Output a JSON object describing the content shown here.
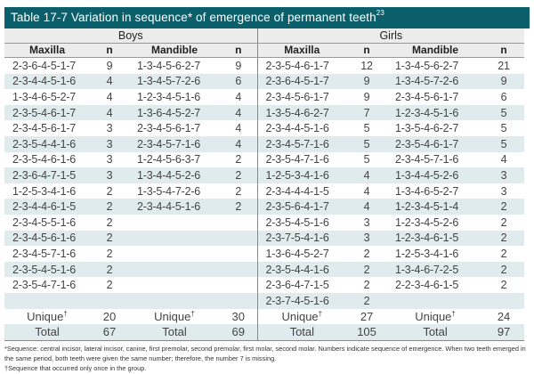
{
  "table": {
    "title": "Table 17-7  Variation in sequence* of emergence of permanent teeth",
    "title_superscript": "23",
    "groups": [
      "Boys",
      "Girls"
    ],
    "columns": [
      "Maxilla",
      "n",
      "Mandible",
      "n",
      "Maxilla",
      "n",
      "Mandible",
      "n"
    ],
    "rows": [
      [
        "2-3-6-4-5-1-7",
        "9",
        "1-3-4-5-6-2-7",
        "9",
        "2-3-5-4-6-1-7",
        "12",
        "1-3-4-5-6-2-7",
        "21"
      ],
      [
        "2-3-4-4-5-1-6",
        "4",
        "1-3-4-5-7-2-6",
        "6",
        "2-3-6-4-5-1-7",
        "9",
        "1-3-4-5-7-2-6",
        "9"
      ],
      [
        "1-3-4-6-5-2-7",
        "4",
        "1-2-3-4-5-1-6",
        "4",
        "2-3-4-5-6-1-7",
        "9",
        "2-3-4-5-6-1-7",
        "6"
      ],
      [
        "2-3-5-4-6-1-7",
        "4",
        "1-3-6-4-5-2-7",
        "4",
        "1-3-5-4-6-2-7",
        "7",
        "1-2-3-4-5-1-6",
        "5"
      ],
      [
        "2-3-4-5-6-1-7",
        "3",
        "2-3-4-5-6-1-7",
        "4",
        "2-3-4-4-5-1-6",
        "5",
        "1-3-5-4-6-2-7",
        "5"
      ],
      [
        "2-3-5-4-4-1-6",
        "3",
        "2-3-4-5-7-1-6",
        "4",
        "2-3-4-5-7-1-6",
        "5",
        "2-3-5-4-6-1-7",
        "5"
      ],
      [
        "2-3-5-4-6-1-6",
        "3",
        "1-2-4-5-6-3-7",
        "2",
        "2-3-5-4-7-1-6",
        "5",
        "2-3-4-5-7-1-6",
        "4"
      ],
      [
        "2-3-6-4-7-1-5",
        "3",
        "1-3-4-4-5-2-6",
        "2",
        "1-2-5-3-4-1-6",
        "4",
        "1-3-4-4-5-2-6",
        "3"
      ],
      [
        "1-2-5-3-4-1-6",
        "2",
        "1-3-5-4-7-2-6",
        "2",
        "2-3-4-4-4-1-5",
        "4",
        "1-3-4-6-5-2-7",
        "3"
      ],
      [
        "2-3-4-4-6-1-5",
        "2",
        "2-3-4-4-5-1-6",
        "2",
        "2-3-5-6-4-1-7",
        "4",
        "1-2-3-4-5-1-4",
        "2"
      ],
      [
        "2-3-4-5-5-1-6",
        "2",
        "",
        "",
        "2-3-5-4-5-1-6",
        "3",
        "1-2-3-4-5-2-6",
        "2"
      ],
      [
        "2-3-4-5-6-1-6",
        "2",
        "",
        "",
        "2-3-7-5-4-1-6",
        "3",
        "1-2-3-4-6-1-5",
        "2"
      ],
      [
        "2-3-4-5-7-1-6",
        "2",
        "",
        "",
        "1-3-6-4-5-2-7",
        "2",
        "1-2-5-3-4-1-6",
        "2"
      ],
      [
        "2-3-5-4-5-1-6",
        "2",
        "",
        "",
        "2-3-5-4-4-1-6",
        "2",
        "1-3-4-6-7-2-5",
        "2"
      ],
      [
        "2-3-5-4-7-1-6",
        "2",
        "",
        "",
        "2-3-6-4-7-1-5",
        "2",
        "2-2-3-4-6-1-5",
        "2"
      ],
      [
        "",
        "",
        "",
        "",
        "2-3-7-4-5-1-6",
        "2",
        "",
        ""
      ]
    ],
    "unique": {
      "label": "Unique",
      "marker": "†",
      "values": [
        "20",
        "30",
        "27",
        "24"
      ]
    },
    "total": {
      "label": "Total",
      "values": [
        "67",
        "69",
        "105",
        "97"
      ]
    },
    "footnotes": [
      "*Sequence: central incisor, lateral incisor, canine, first premolar, second premolar, first molar, second molar. Numbers indicate sequence of emergence. When two teeth emerged in the same period, both teeth were given the same number; therefore, the number 7 is missing.",
      "†Sequence that occurred only once in the group."
    ]
  }
}
